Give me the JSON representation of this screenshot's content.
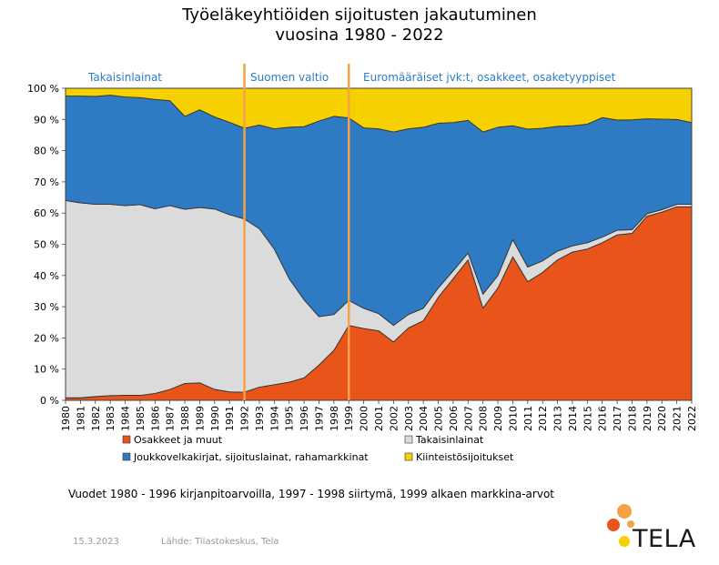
{
  "header": {
    "title_line1": "Työeläkeyhtiöiden sijoitusten jakautuminen",
    "title_line2": "vuosina 1980 - 2022"
  },
  "colors": {
    "osakkeet": "#E8541A",
    "takaisinlainat": "#DBDBDB",
    "joukkovelkakirjat": "#2E7BC4",
    "kiinteisto": "#F7D000",
    "divider": "#F5A246",
    "period_label": "#2E7BC4"
  },
  "chart_data": {
    "type": "area",
    "stacked": true,
    "x": [
      "1980",
      "1981",
      "1982",
      "1983",
      "1984",
      "1985",
      "1986",
      "1987",
      "1988",
      "1989",
      "1990",
      "1991",
      "1992",
      "1993",
      "1994",
      "1995",
      "1996",
      "1997",
      "1998",
      "1999",
      "2000",
      "2001",
      "2002",
      "2003",
      "2004",
      "2005",
      "2006",
      "2007",
      "2008",
      "2009",
      "2010",
      "2011",
      "2012",
      "2013",
      "2014",
      "2015",
      "2016",
      "2017",
      "2018",
      "2019",
      "2020",
      "2021",
      "2022"
    ],
    "series": [
      {
        "name": "Osakkeet ja muut",
        "color_key": "osakkeet",
        "values": [
          0.8,
          0.8,
          1.2,
          1.5,
          1.6,
          1.6,
          2.2,
          3.5,
          5.4,
          5.6,
          3.5,
          2.7,
          2.6,
          4.2,
          5.0,
          5.8,
          7.2,
          11.3,
          16.0,
          24.0,
          23.0,
          22.3,
          18.7,
          23.2,
          25.5,
          33.0,
          39.0,
          45.0,
          29.5,
          36.0,
          46.0,
          38.0,
          41.0,
          45.0,
          47.5,
          48.5,
          50.5,
          53.0,
          53.5,
          59.0,
          60.3,
          62.0,
          62.0
        ]
      },
      {
        "name": "Takaisinlainat",
        "color_key": "takaisinlainat",
        "values": [
          63.2,
          62.5,
          61.6,
          61.3,
          60.8,
          61.1,
          59.2,
          58.9,
          55.8,
          56.2,
          57.8,
          56.8,
          55.5,
          50.8,
          43.5,
          33.2,
          25.0,
          15.5,
          11.5,
          8.0,
          6.5,
          5.5,
          5.3,
          4.3,
          4.0,
          3.0,
          2.5,
          2.2,
          4.5,
          4.0,
          5.5,
          4.7,
          3.7,
          2.8,
          2.0,
          2.0,
          1.8,
          1.5,
          1.2,
          0.8,
          0.8,
          0.8,
          0.8
        ]
      },
      {
        "name": "Joukkovelkakirjat, sijoituslainat, rahamarkkinat",
        "color_key": "joukkovelkakirjat",
        "values": [
          33.5,
          34.2,
          34.6,
          35.0,
          34.8,
          34.3,
          35.0,
          33.6,
          29.8,
          31.3,
          29.5,
          29.6,
          29.1,
          33.2,
          38.5,
          48.5,
          55.5,
          62.7,
          63.5,
          58.5,
          57.8,
          59.2,
          62.0,
          59.5,
          58.0,
          52.8,
          47.5,
          42.5,
          52.0,
          47.5,
          36.5,
          44.2,
          42.5,
          40.0,
          38.5,
          38.0,
          38.3,
          35.3,
          35.2,
          30.4,
          29.0,
          27.2,
          26.2
        ]
      },
      {
        "name": "Kiinteistösijoitukset",
        "color_key": "kiinteisto",
        "values": [
          2.5,
          2.5,
          2.6,
          2.2,
          2.8,
          3.0,
          3.6,
          4.0,
          9.0,
          6.9,
          9.2,
          10.9,
          12.8,
          11.8,
          13.0,
          12.5,
          12.3,
          10.5,
          9.0,
          9.5,
          12.7,
          13.0,
          14.0,
          13.0,
          12.5,
          11.2,
          11.0,
          10.3,
          14.0,
          12.5,
          12.0,
          13.1,
          12.8,
          12.2,
          12.0,
          11.5,
          9.4,
          10.2,
          10.1,
          9.8,
          9.9,
          10.0,
          11.0
        ]
      }
    ],
    "ylim": [
      0,
      100
    ],
    "yticks": [
      0,
      10,
      20,
      30,
      40,
      50,
      60,
      70,
      80,
      90,
      100
    ],
    "ytick_labels": [
      "0 %",
      "10 %",
      "20 %",
      "30 %",
      "40 %",
      "50 %",
      "60 %",
      "70 %",
      "80 %",
      "90 %",
      "100 %"
    ],
    "xlabel": "",
    "ylabel": "",
    "grid": false,
    "legend_position": "bottom",
    "dividers": [
      "1992",
      "1999"
    ],
    "periods": [
      {
        "label": "Takaisinlainat"
      },
      {
        "label": "Suomen valtio"
      },
      {
        "label": "Euromääräiset jvk:t, osakkeet, osaketyyppiset"
      }
    ]
  },
  "footer": {
    "note": "Vuodet 1980 - 1996 kirjanpitoarvoilla, 1997 - 1998 siirtymä, 1999 alkaen markkina-arvot",
    "date": "15.3.2023",
    "source": "Lähde: Tilastokeskus, Tela",
    "logo_text": "TELA"
  }
}
